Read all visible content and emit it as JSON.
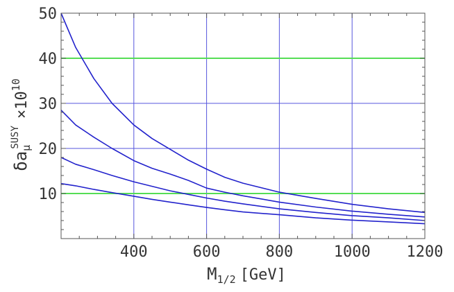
{
  "chart_data": {
    "type": "line",
    "xlabel": "M",
    "xlabel_sub": "1/2",
    "xlabel_unit": "[GeV]",
    "ylabel": "δa",
    "ylabel_sub": "μ",
    "ylabel_sup": "SUSY",
    "ylabel_factor": "×10",
    "ylabel_factor_exp": "10",
    "xlim": [
      200,
      1200
    ],
    "ylim": [
      0,
      50
    ],
    "x_ticks": [
      400,
      600,
      800,
      1000,
      1200
    ],
    "y_ticks": [
      10,
      20,
      30,
      40,
      50
    ],
    "x_gridlines": [
      400,
      600,
      800,
      1000
    ],
    "y_gridlines_blue": [
      20,
      30
    ],
    "y_gridlines_green": [
      10,
      40
    ],
    "colors": {
      "series": "#2222cc",
      "grid_blue": "#5555dd",
      "grid_green": "#55dd55",
      "frame": "#555555"
    },
    "series": [
      {
        "x": [
          200,
          240,
          290,
          340,
          400,
          450,
          500,
          550,
          600,
          650,
          700,
          800,
          900,
          1000,
          1100,
          1200
        ],
        "y": [
          50.0,
          42.4,
          35.5,
          30.0,
          25.2,
          22.2,
          19.8,
          17.4,
          15.4,
          13.6,
          12.3,
          10.3,
          8.9,
          7.6,
          6.6,
          5.8
        ]
      },
      {
        "x": [
          200,
          240,
          290,
          340,
          400,
          450,
          500,
          550,
          600,
          650,
          700,
          800,
          900,
          1000,
          1100,
          1200
        ],
        "y": [
          28.5,
          25.2,
          22.5,
          20.0,
          17.3,
          15.6,
          14.3,
          12.9,
          11.2,
          10.3,
          9.5,
          8.1,
          7.0,
          6.1,
          5.4,
          4.8
        ]
      },
      {
        "x": [
          200,
          240,
          290,
          340,
          400,
          450,
          500,
          550,
          600,
          650,
          700,
          800,
          900,
          1000,
          1100,
          1200
        ],
        "y": [
          18.0,
          16.5,
          15.3,
          14.0,
          12.6,
          11.6,
          10.6,
          9.8,
          9.0,
          8.3,
          7.7,
          6.6,
          5.8,
          5.1,
          4.6,
          4.0
        ]
      },
      {
        "x": [
          200,
          240,
          290,
          340,
          400,
          450,
          500,
          550,
          600,
          650,
          700,
          800,
          900,
          1000,
          1100,
          1200
        ],
        "y": [
          12.2,
          11.7,
          10.9,
          10.2,
          9.4,
          8.7,
          8.1,
          7.5,
          6.9,
          6.4,
          5.9,
          5.3,
          4.6,
          4.1,
          3.7,
          3.3
        ]
      }
    ]
  }
}
